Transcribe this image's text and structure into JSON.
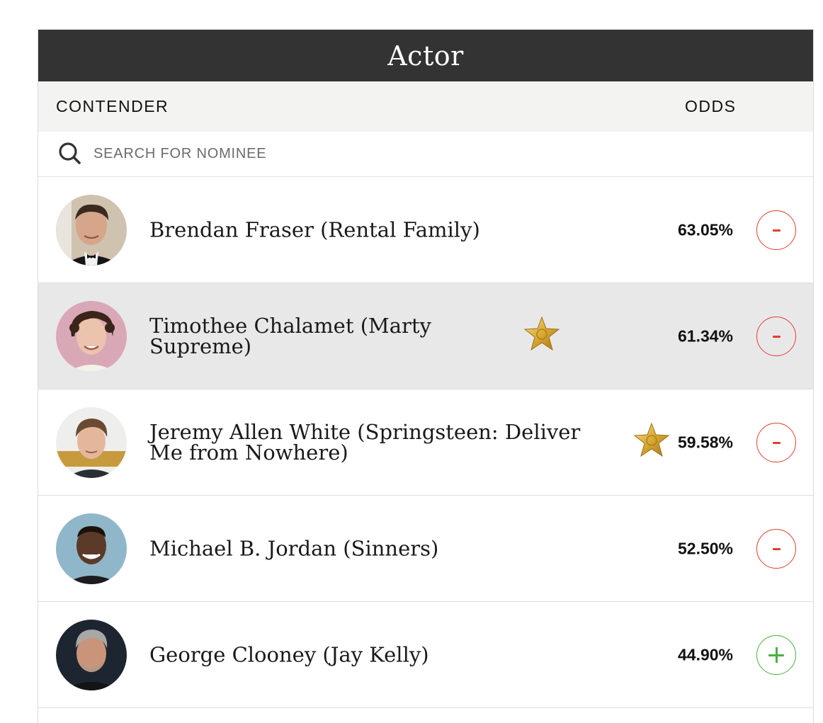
{
  "category_title": "Actor",
  "columns": {
    "contender": "CONTENDER",
    "odds": "ODDS"
  },
  "search": {
    "placeholder": "SEARCH FOR NOMINEE",
    "icon": "search-icon"
  },
  "colors": {
    "title_bar": "#333333",
    "minus_accent": "#e0402d",
    "plus_accent": "#4cae43",
    "highlight_row": "#e8e8e9"
  },
  "contenders": [
    {
      "name": "Brendan Fraser (Rental Family)",
      "odds": "63.05%",
      "action": "minus",
      "star": false,
      "highlighted": false
    },
    {
      "name": "Timothee Chalamet (Marty Supreme)",
      "odds": "61.34%",
      "action": "minus",
      "star": true,
      "highlighted": true
    },
    {
      "name": "Jeremy Allen White (Springsteen: Deliver Me from Nowhere)",
      "odds": "59.58%",
      "action": "minus",
      "star": true,
      "highlighted": false
    },
    {
      "name": "Michael B. Jordan (Sinners)",
      "odds": "52.50%",
      "action": "minus",
      "star": false,
      "highlighted": false
    },
    {
      "name": "George Clooney (Jay Kelly)",
      "odds": "44.90%",
      "action": "plus",
      "star": false,
      "highlighted": false
    }
  ]
}
